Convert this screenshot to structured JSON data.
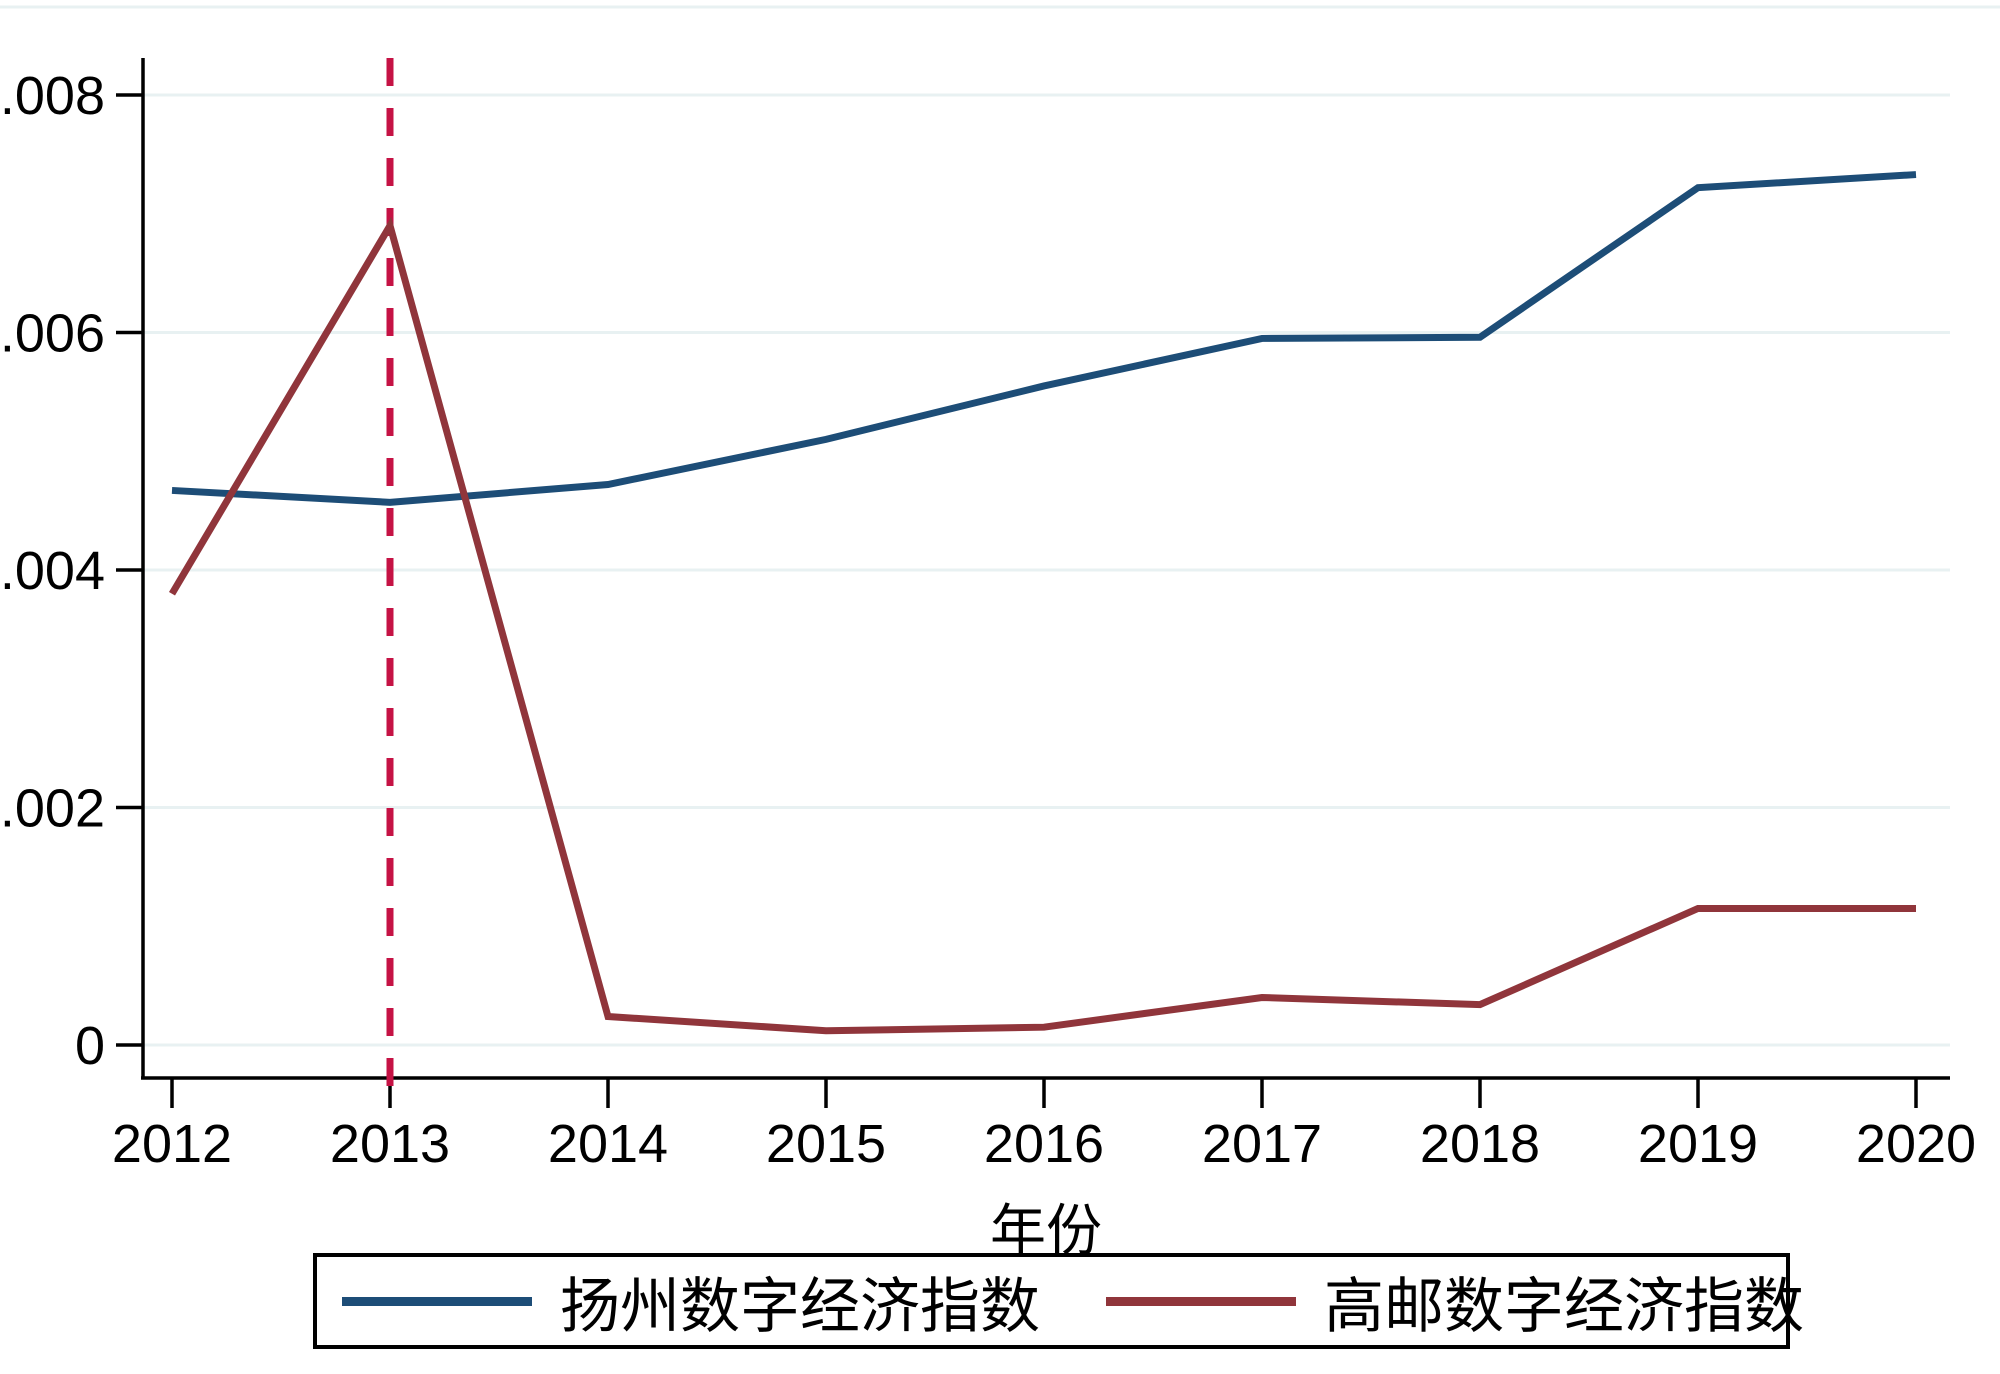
{
  "figure": {
    "background": "#ffffff",
    "axis_color": "#000000",
    "gridline_color": "#e8f1f2"
  },
  "chart_data": {
    "type": "line",
    "x": [
      2012,
      2013,
      2014,
      2015,
      2016,
      2017,
      2018,
      2019,
      2020
    ],
    "xtick_labels": [
      "2012",
      "2013",
      "2014",
      "2015",
      "2016",
      "2017",
      "2018",
      "2019",
      "2020"
    ],
    "series": [
      {
        "name": "扬州数字经济指数",
        "color": "#1d4d77",
        "values": [
          0.00467,
          0.00457,
          0.00472,
          0.0051,
          0.00555,
          0.00595,
          0.00596,
          0.00722,
          0.00733
        ]
      },
      {
        "name": "高邮数字经济指数",
        "color": "#90353b",
        "values": [
          0.0038,
          0.0069,
          0.00024,
          0.00012,
          0.00015,
          0.0004,
          0.00034,
          0.00115,
          0.00115
        ]
      }
    ],
    "xlabel": "年份",
    "ylabel": "",
    "ylim": [
      0,
      0.008
    ],
    "yticks": [
      0,
      0.002,
      0.004,
      0.006,
      0.008
    ],
    "ytick_labels": [
      "0",
      ".002",
      ".004",
      ".006",
      ".008"
    ],
    "grid": "horizontal",
    "legend_position": "bottom",
    "vline": {
      "x": 2013,
      "color": "#c51244",
      "style": "dashed"
    }
  }
}
